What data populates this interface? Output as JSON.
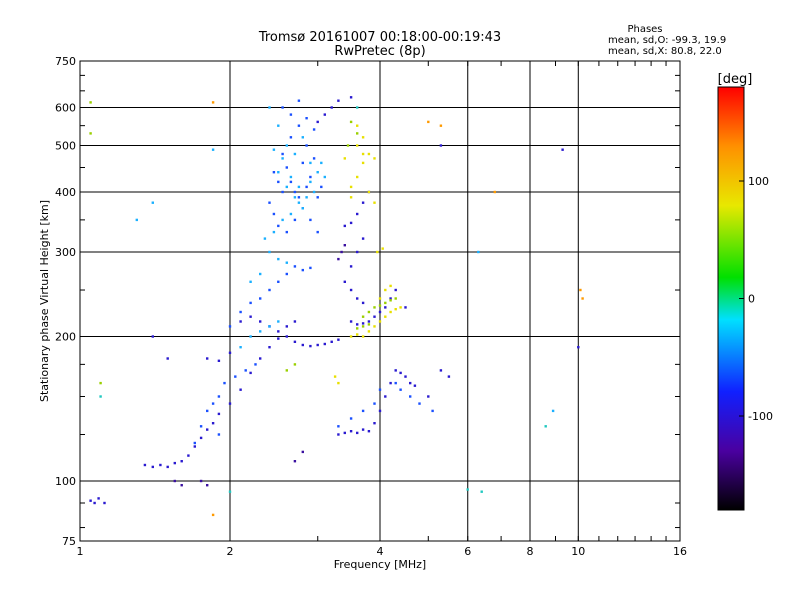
{
  "header": {
    "title": "Tromsø 20161007 00:18:00-00:19:43",
    "subtitle": "RwPretec (8p)",
    "phase_title": "Phases",
    "phase_line1": "mean, sd,O: -99.3, 19.9",
    "phase_line2": "mean, sd,X:  80.8, 22.0"
  },
  "chart_data": {
    "type": "scatter",
    "title": "Tromsø 20161007 00:18:00-00:19:43",
    "subtitle": "RwPretec (8p)",
    "xlabel": "Frequency [MHz]",
    "ylabel": "Stationary phase Virtual Height [km]",
    "x_scale": "log",
    "y_scale": "log",
    "xlim": [
      1,
      16
    ],
    "ylim": [
      75,
      750
    ],
    "x_ticks": [
      1,
      2,
      4,
      6,
      8,
      10,
      16
    ],
    "x_tick_labels": [
      "1",
      "2",
      "4",
      "6",
      "8",
      "10",
      "16"
    ],
    "y_ticks": [
      75,
      100,
      200,
      300,
      400,
      500,
      600,
      750
    ],
    "y_tick_labels": [
      "75",
      "100",
      "200",
      "300",
      "400",
      "500",
      "600",
      "750"
    ],
    "grid": true,
    "colorbar": {
      "label": "[deg]",
      "range": [
        -180,
        180
      ],
      "ticks": [
        100,
        0,
        -100
      ],
      "tick_labels": [
        "100",
        "0",
        "-100"
      ]
    },
    "series": [
      {
        "color": "#2a1ad0",
        "points": [
          [
            1.05,
            91
          ],
          [
            1.07,
            90
          ],
          [
            1.09,
            92
          ],
          [
            1.12,
            90
          ],
          [
            1.35,
            108
          ],
          [
            1.4,
            107
          ],
          [
            1.45,
            108
          ],
          [
            1.5,
            107
          ],
          [
            1.55,
            109
          ],
          [
            1.6,
            110
          ],
          [
            1.65,
            113
          ],
          [
            1.7,
            118
          ],
          [
            1.75,
            123
          ],
          [
            1.8,
            128
          ],
          [
            1.85,
            132
          ],
          [
            1.9,
            138
          ],
          [
            2.0,
            145
          ],
          [
            2.1,
            155
          ],
          [
            2.2,
            168
          ],
          [
            2.3,
            180
          ],
          [
            2.4,
            190
          ],
          [
            2.5,
            198
          ],
          [
            2.6,
            200
          ],
          [
            2.7,
            195
          ],
          [
            2.8,
            192
          ],
          [
            2.9,
            191
          ],
          [
            3.0,
            192
          ],
          [
            3.1,
            193
          ],
          [
            3.2,
            195
          ],
          [
            3.3,
            197
          ],
          [
            3.5,
            215
          ],
          [
            3.6,
            212
          ],
          [
            3.7,
            213
          ],
          [
            3.8,
            215
          ],
          [
            3.9,
            220
          ],
          [
            4.0,
            225
          ],
          [
            4.1,
            230
          ],
          [
            4.2,
            240
          ],
          [
            4.3,
            250
          ],
          [
            4.5,
            230
          ],
          [
            3.3,
            125
          ],
          [
            3.4,
            126
          ],
          [
            3.5,
            127
          ],
          [
            3.6,
            126
          ],
          [
            3.7,
            128
          ],
          [
            3.8,
            127
          ],
          [
            3.9,
            132
          ],
          [
            4.0,
            140
          ],
          [
            4.1,
            150
          ],
          [
            4.2,
            160
          ],
          [
            4.3,
            170
          ],
          [
            4.4,
            168
          ],
          [
            4.5,
            165
          ],
          [
            4.6,
            160
          ],
          [
            4.7,
            158
          ],
          [
            5.0,
            150
          ],
          [
            5.3,
            170
          ],
          [
            5.5,
            165
          ],
          [
            3.4,
            340
          ],
          [
            3.5,
            345
          ],
          [
            3.6,
            360
          ],
          [
            3.7,
            380
          ],
          [
            3.8,
            400
          ],
          [
            3.7,
            320
          ],
          [
            3.6,
            300
          ],
          [
            3.5,
            280
          ],
          [
            3.4,
            260
          ],
          [
            3.5,
            250
          ],
          [
            3.6,
            240
          ],
          [
            3.7,
            235
          ],
          [
            2.1,
            215
          ],
          [
            2.2,
            220
          ],
          [
            2.3,
            215
          ],
          [
            2.4,
            210
          ],
          [
            2.5,
            205
          ],
          [
            2.6,
            210
          ],
          [
            2.7,
            215
          ],
          [
            1.8,
            180
          ],
          [
            1.9,
            178
          ],
          [
            2.0,
            185
          ],
          [
            3.3,
            620
          ],
          [
            3.5,
            630
          ],
          [
            3.2,
            600
          ],
          [
            3.1,
            580
          ],
          [
            3.0,
            560
          ],
          [
            1.4,
            200
          ],
          [
            1.5,
            180
          ],
          [
            5.3,
            500
          ],
          [
            9.3,
            490
          ],
          [
            10.0,
            190
          ]
        ]
      },
      {
        "color": "#1a50ff",
        "points": [
          [
            2.4,
            380
          ],
          [
            2.5,
            420
          ],
          [
            2.6,
            450
          ],
          [
            2.7,
            400
          ],
          [
            2.8,
            460
          ],
          [
            2.9,
            430
          ],
          [
            3.0,
            390
          ],
          [
            2.45,
            360
          ],
          [
            2.55,
            480
          ],
          [
            2.65,
            520
          ],
          [
            2.75,
            550
          ],
          [
            2.85,
            500
          ],
          [
            2.95,
            470
          ],
          [
            3.05,
            410
          ],
          [
            2.5,
            340
          ],
          [
            2.6,
            330
          ],
          [
            2.7,
            350
          ],
          [
            2.8,
            370
          ],
          [
            2.9,
            350
          ],
          [
            3.0,
            330
          ],
          [
            2.55,
            600
          ],
          [
            2.65,
            580
          ],
          [
            2.75,
            620
          ],
          [
            2.85,
            570
          ],
          [
            2.95,
            540
          ],
          [
            2.45,
            440
          ],
          [
            2.55,
            400
          ],
          [
            2.65,
            420
          ],
          [
            2.75,
            390
          ],
          [
            2.85,
            410
          ],
          [
            2.6,
            270
          ],
          [
            2.7,
            280
          ],
          [
            2.8,
            275
          ],
          [
            2.9,
            278
          ],
          [
            2.5,
            260
          ],
          [
            2.4,
            250
          ],
          [
            2.3,
            240
          ],
          [
            2.2,
            235
          ],
          [
            2.1,
            225
          ],
          [
            2.0,
            210
          ],
          [
            1.8,
            140
          ],
          [
            1.85,
            145
          ],
          [
            1.9,
            150
          ],
          [
            1.95,
            160
          ],
          [
            2.05,
            165
          ],
          [
            2.15,
            170
          ],
          [
            2.25,
            175
          ],
          [
            1.7,
            120
          ],
          [
            1.75,
            130
          ],
          [
            1.9,
            125
          ],
          [
            3.3,
            130
          ],
          [
            3.5,
            135
          ],
          [
            3.7,
            140
          ],
          [
            3.9,
            145
          ],
          [
            4.0,
            155
          ],
          [
            4.3,
            160
          ],
          [
            4.4,
            155
          ],
          [
            4.6,
            150
          ],
          [
            4.8,
            145
          ],
          [
            5.1,
            140
          ]
        ]
      },
      {
        "color": "#1ab0ff",
        "points": [
          [
            2.4,
            600
          ],
          [
            2.5,
            550
          ],
          [
            2.6,
            500
          ],
          [
            2.7,
            480
          ],
          [
            2.8,
            520
          ],
          [
            2.9,
            460
          ],
          [
            2.5,
            440
          ],
          [
            2.6,
            410
          ],
          [
            2.7,
            390
          ],
          [
            2.8,
            370
          ],
          [
            2.4,
            300
          ],
          [
            2.5,
            290
          ],
          [
            2.6,
            285
          ],
          [
            2.3,
            270
          ],
          [
            2.2,
            260
          ],
          [
            2.35,
            320
          ],
          [
            2.45,
            330
          ],
          [
            2.55,
            350
          ],
          [
            2.65,
            360
          ],
          [
            2.75,
            380
          ],
          [
            2.1,
            190
          ],
          [
            2.2,
            200
          ],
          [
            2.3,
            205
          ],
          [
            2.4,
            210
          ],
          [
            2.5,
            215
          ],
          [
            1.4,
            380
          ],
          [
            1.3,
            350
          ],
          [
            1.85,
            490
          ],
          [
            6.3,
            300
          ],
          [
            8.9,
            140
          ],
          [
            2.9,
            420
          ],
          [
            3.0,
            440
          ],
          [
            3.05,
            460
          ],
          [
            3.1,
            430
          ],
          [
            2.95,
            400
          ],
          [
            2.85,
            390
          ],
          [
            2.75,
            410
          ],
          [
            2.65,
            430
          ],
          [
            2.55,
            470
          ],
          [
            2.45,
            490
          ]
        ]
      },
      {
        "color": "#e8e000",
        "points": [
          [
            3.5,
            200
          ],
          [
            3.6,
            202
          ],
          [
            3.7,
            200
          ],
          [
            3.8,
            205
          ],
          [
            3.9,
            210
          ],
          [
            4.0,
            215
          ],
          [
            4.1,
            220
          ],
          [
            4.2,
            225
          ],
          [
            4.3,
            228
          ],
          [
            4.4,
            230
          ],
          [
            4.0,
            240
          ],
          [
            4.1,
            250
          ],
          [
            4.2,
            255
          ],
          [
            3.5,
            410
          ],
          [
            3.6,
            430
          ],
          [
            3.7,
            460
          ],
          [
            3.8,
            480
          ],
          [
            3.9,
            470
          ],
          [
            3.6,
            500
          ],
          [
            3.7,
            520
          ],
          [
            3.8,
            400
          ],
          [
            3.9,
            380
          ],
          [
            3.5,
            390
          ],
          [
            3.4,
            470
          ],
          [
            3.3,
            160
          ],
          [
            3.25,
            165
          ],
          [
            3.6,
            550
          ],
          [
            3.7,
            480
          ],
          [
            3.95,
            300
          ],
          [
            4.05,
            305
          ]
        ]
      },
      {
        "color": "#9ad000",
        "points": [
          [
            3.5,
            560
          ],
          [
            3.6,
            530
          ],
          [
            3.45,
            500
          ],
          [
            3.7,
            220
          ],
          [
            3.8,
            225
          ],
          [
            3.9,
            230
          ],
          [
            4.0,
            232
          ],
          [
            4.1,
            235
          ],
          [
            4.2,
            238
          ],
          [
            4.3,
            240
          ],
          [
            3.6,
            208
          ],
          [
            3.7,
            210
          ],
          [
            3.8,
            212
          ],
          [
            2.6,
            170
          ],
          [
            2.7,
            175
          ],
          [
            1.1,
            160
          ],
          [
            1.05,
            530
          ],
          [
            1.05,
            615
          ]
        ]
      },
      {
        "color": "#ff9a00",
        "points": [
          [
            1.85,
            615
          ],
          [
            1.85,
            85
          ],
          [
            5.3,
            550
          ],
          [
            6.8,
            400
          ],
          [
            10.1,
            250
          ],
          [
            10.2,
            240
          ],
          [
            5.0,
            560
          ]
        ]
      },
      {
        "color": "#3a10a0",
        "points": [
          [
            1.75,
            100
          ],
          [
            1.8,
            98
          ],
          [
            1.55,
            100
          ],
          [
            1.6,
            98
          ],
          [
            2.7,
            110
          ],
          [
            2.8,
            115
          ],
          [
            3.3,
            290
          ],
          [
            3.35,
            300
          ],
          [
            3.4,
            310
          ]
        ]
      },
      {
        "color": "#20c8c0",
        "points": [
          [
            1.1,
            150
          ],
          [
            6.0,
            96
          ],
          [
            6.4,
            95
          ],
          [
            8.6,
            130
          ],
          [
            2.0,
            95
          ],
          [
            3.6,
            600
          ]
        ]
      }
    ]
  }
}
